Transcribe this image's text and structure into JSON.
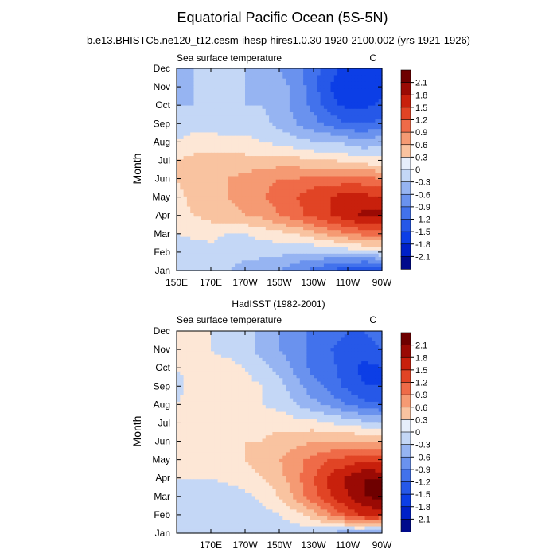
{
  "figure": {
    "title": "Equatorial Pacific Ocean (5S-5N)",
    "subtitle": "b.e13.BHISTC5.ne120_t12.cesm-ihesp-hires1.0.30-1920-2100.002 (yrs 1921-1926)",
    "panel2_title": "HadISST (1982-2001)"
  },
  "chart_data": [
    {
      "type": "heatmap",
      "variable_label": "Sea surface temperature",
      "units_label": "C",
      "ylabel": "Month",
      "yticks": [
        "Jan",
        "Feb",
        "Mar",
        "Apr",
        "May",
        "Jun",
        "Jul",
        "Aug",
        "Sep",
        "Oct",
        "Nov",
        "Dec"
      ],
      "xticks": [
        "150E",
        "170E",
        "170W",
        "150W",
        "130W",
        "110W",
        "90W"
      ],
      "xlim_deg_east": [
        150,
        270
      ],
      "colorbar_levels": [
        2.1,
        1.8,
        1.5,
        1.2,
        0.9,
        0.6,
        0.3,
        0,
        -0.3,
        -0.6,
        -0.9,
        -1.2,
        -1.5,
        -1.8,
        -2.1
      ],
      "x_deg_east": [
        150,
        160,
        170,
        180,
        190,
        200,
        210,
        220,
        230,
        240,
        250,
        260,
        270
      ],
      "z": [
        [
          -0.3,
          -0.2,
          -0.2,
          -0.3,
          -0.4,
          -0.5,
          -0.6,
          -0.8,
          -1.0,
          -1.2,
          -1.4,
          -1.6,
          -1.6
        ],
        [
          -0.3,
          -0.2,
          -0.1,
          -0.2,
          -0.2,
          -0.2,
          -0.2,
          -0.3,
          -0.3,
          -0.3,
          -0.2,
          -0.1,
          0.0
        ],
        [
          0.0,
          0.1,
          0.1,
          0.0,
          0.0,
          0.1,
          0.2,
          0.3,
          0.5,
          0.7,
          0.9,
          1.0,
          1.0
        ],
        [
          0.2,
          0.3,
          0.4,
          0.5,
          0.6,
          0.7,
          0.9,
          1.1,
          1.3,
          1.5,
          1.7,
          1.9,
          1.9
        ],
        [
          0.2,
          0.4,
          0.5,
          0.6,
          0.7,
          0.9,
          1.0,
          1.2,
          1.4,
          1.5,
          1.7,
          1.6,
          1.5
        ],
        [
          0.3,
          0.5,
          0.6,
          0.6,
          0.7,
          0.8,
          0.9,
          0.9,
          1.0,
          1.0,
          1.0,
          1.0,
          0.9
        ],
        [
          0.3,
          0.4,
          0.4,
          0.4,
          0.4,
          0.4,
          0.4,
          0.4,
          0.3,
          0.3,
          0.2,
          0.1,
          0.1
        ],
        [
          0.0,
          0.1,
          0.1,
          0.1,
          0.1,
          0.0,
          -0.1,
          -0.2,
          -0.3,
          -0.3,
          -0.4,
          -0.5,
          -0.4
        ],
        [
          -0.1,
          -0.1,
          -0.1,
          -0.2,
          -0.2,
          -0.2,
          -0.4,
          -0.6,
          -0.8,
          -1.0,
          -1.2,
          -1.2,
          -1.1
        ],
        [
          -0.3,
          -0.3,
          -0.3,
          -0.2,
          -0.3,
          -0.3,
          -0.5,
          -0.7,
          -1.0,
          -1.4,
          -1.6,
          -1.6,
          -1.4
        ],
        [
          -0.4,
          -0.3,
          -0.2,
          -0.2,
          -0.3,
          -0.4,
          -0.5,
          -0.7,
          -1.1,
          -1.5,
          -1.7,
          -1.7,
          -1.6
        ],
        [
          -0.4,
          -0.3,
          -0.2,
          -0.2,
          -0.3,
          -0.4,
          -0.6,
          -0.8,
          -1.1,
          -1.4,
          -1.6,
          -1.6,
          -1.6
        ]
      ]
    },
    {
      "type": "heatmap",
      "variable_label": "Sea surface temperature",
      "units_label": "C",
      "ylabel": "Month",
      "yticks": [
        "Jan",
        "Feb",
        "Mar",
        "Apr",
        "May",
        "Jun",
        "Jul",
        "Aug",
        "Sep",
        "Oct",
        "Nov",
        "Dec"
      ],
      "xticks": [
        "170E",
        "170W",
        "150W",
        "130W",
        "110W",
        "90W"
      ],
      "xlim_deg_east": [
        150,
        270
      ],
      "colorbar_levels": [
        2.1,
        1.8,
        1.5,
        1.2,
        0.9,
        0.6,
        0.3,
        0,
        -0.3,
        -0.6,
        -0.9,
        -1.2,
        -1.5,
        -1.8,
        -2.1
      ],
      "x_deg_east": [
        150,
        160,
        170,
        180,
        190,
        200,
        210,
        220,
        230,
        240,
        250,
        260,
        270
      ],
      "z": [
        [
          0.0,
          0.0,
          -0.1,
          -0.1,
          -0.1,
          -0.1,
          -0.2,
          -0.2,
          -0.3,
          -0.4,
          -0.5,
          -0.6,
          -0.7
        ],
        [
          -0.1,
          -0.2,
          -0.3,
          -0.3,
          -0.2,
          -0.1,
          0.0,
          0.2,
          0.5,
          0.9,
          1.3,
          1.6,
          1.6
        ],
        [
          -0.1,
          -0.2,
          -0.3,
          -0.2,
          -0.1,
          0.1,
          0.3,
          0.7,
          1.1,
          1.5,
          1.8,
          2.1,
          2.2
        ],
        [
          0.0,
          0.0,
          0.0,
          0.1,
          0.2,
          0.3,
          0.5,
          0.8,
          1.2,
          1.6,
          1.9,
          2.1,
          2.1
        ],
        [
          0.1,
          0.1,
          0.1,
          0.2,
          0.3,
          0.4,
          0.6,
          0.8,
          1.0,
          1.2,
          1.3,
          1.4,
          1.3
        ],
        [
          0.1,
          0.2,
          0.2,
          0.2,
          0.3,
          0.3,
          0.4,
          0.5,
          0.6,
          0.6,
          0.6,
          0.6,
          0.5
        ],
        [
          0.1,
          0.2,
          0.2,
          0.2,
          0.2,
          0.2,
          0.2,
          0.1,
          0.1,
          0.0,
          -0.1,
          -0.2,
          -0.3
        ],
        [
          0.0,
          0.1,
          0.1,
          0.2,
          0.1,
          0.0,
          -0.1,
          -0.3,
          -0.5,
          -0.7,
          -0.9,
          -1.1,
          -1.2
        ],
        [
          -0.1,
          0.1,
          0.2,
          0.3,
          0.1,
          0.0,
          -0.2,
          -0.5,
          -0.8,
          -1.0,
          -1.3,
          -1.5,
          -1.5
        ],
        [
          0.0,
          0.1,
          0.1,
          0.1,
          0.0,
          -0.2,
          -0.4,
          -0.7,
          -1.0,
          -1.1,
          -1.4,
          -1.6,
          -1.5
        ],
        [
          0.0,
          0.0,
          0.0,
          -0.1,
          -0.2,
          -0.4,
          -0.6,
          -0.8,
          -1.0,
          -1.2,
          -1.3,
          -1.3,
          -1.2
        ],
        [
          0.0,
          0.0,
          0.0,
          -0.1,
          -0.2,
          -0.4,
          -0.6,
          -0.8,
          -1.0,
          -1.1,
          -1.2,
          -1.2,
          -1.1
        ]
      ]
    }
  ],
  "colors": {
    "palette": [
      "#000a8c",
      "#0020c8",
      "#0c3ee6",
      "#2658e8",
      "#4272ec",
      "#6a92ee",
      "#96b4f2",
      "#c4d7f6",
      "#e6eefb",
      "#fde7d6",
      "#f9c3a0",
      "#f59a73",
      "#ef6b48",
      "#e14425",
      "#c8200c",
      "#9a0a04",
      "#6e0000"
    ]
  }
}
